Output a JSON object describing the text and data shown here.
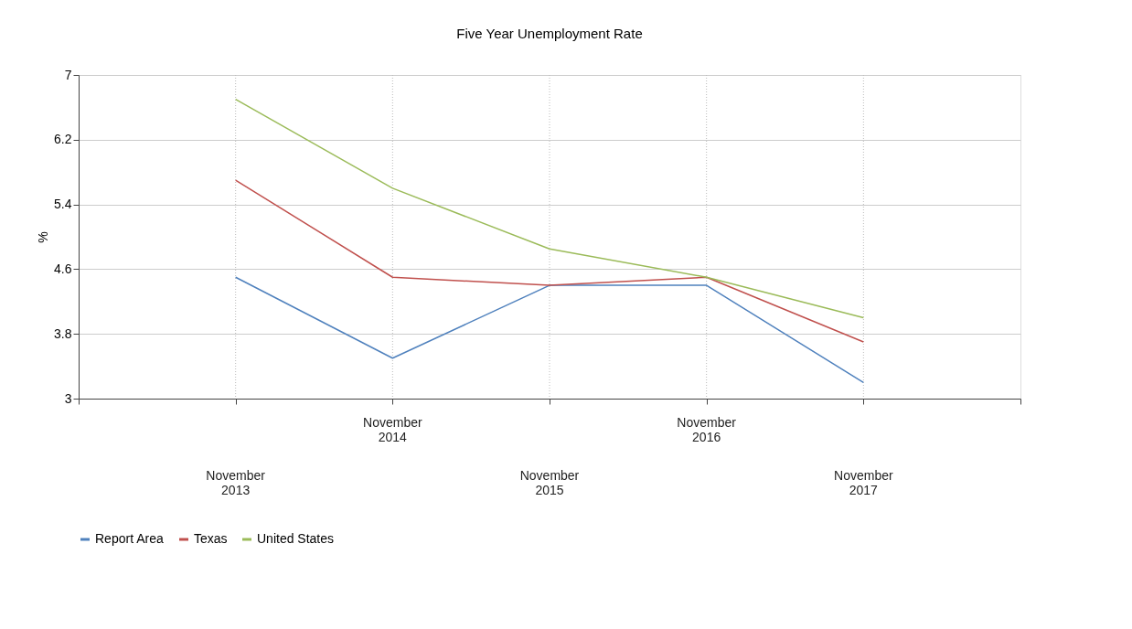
{
  "chart_data": {
    "type": "line",
    "title": "Five Year Unemployment Rate",
    "ylabel": "%",
    "categories": [
      "November 2013",
      "November 2014",
      "November 2015",
      "November 2016",
      "November 2017"
    ],
    "series": [
      {
        "name": "Report Area",
        "color": "#4f81bd",
        "values": [
          4.5,
          3.5,
          4.4,
          4.4,
          3.2
        ]
      },
      {
        "name": "Texas",
        "color": "#c0504d",
        "values": [
          5.7,
          4.5,
          4.4,
          4.5,
          3.7
        ]
      },
      {
        "name": "United States",
        "color": "#9bbb59",
        "values": [
          6.7,
          5.6,
          4.85,
          4.5,
          4.0
        ]
      }
    ],
    "ylim": [
      3,
      7
    ],
    "yticks": [
      3,
      3.8,
      4.6,
      5.4,
      6.2,
      7
    ],
    "grid": true,
    "legend": "bottom",
    "marker": "none",
    "line_style": "solid"
  }
}
